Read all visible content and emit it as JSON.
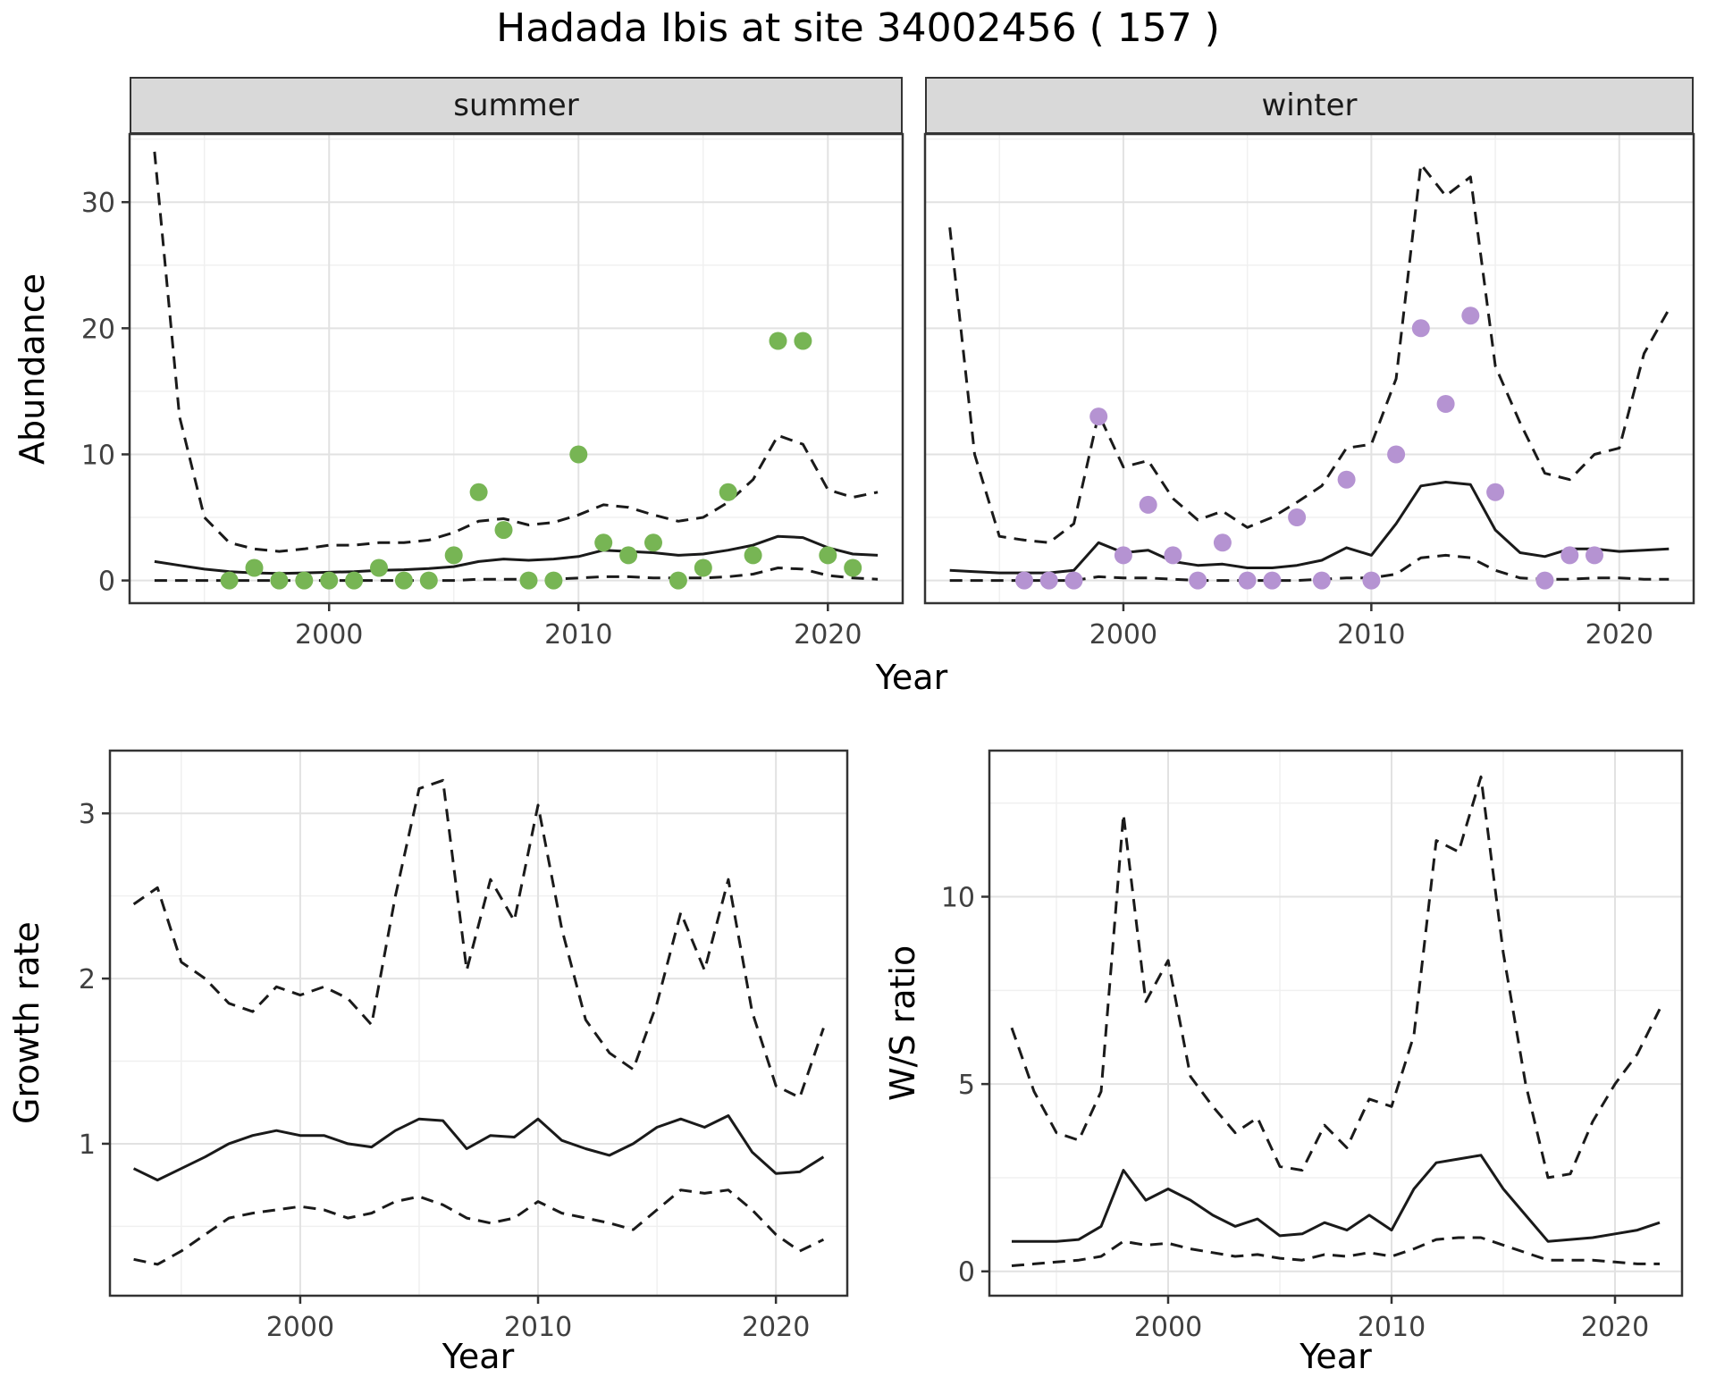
{
  "title": "Hadada Ibis at site 34002456 ( 157 )",
  "axes": {
    "abundance_ylabel": "Abundance",
    "top_xlabel": "Year",
    "growth_ylabel": "Growth rate",
    "growth_xlabel": "Year",
    "ws_ylabel": "W/S ratio",
    "ws_xlabel": "Year"
  },
  "facets": [
    {
      "label": "summer"
    },
    {
      "label": "winter"
    }
  ],
  "colors": {
    "summer_point": "#77b554",
    "winter_point": "#b593d2",
    "line": "#1a1a1a",
    "grid_major": "#e2e2e2",
    "grid_minor": "#f0f0f0",
    "strip_bg": "#d9d9d9",
    "panel_border": "#333333",
    "tick": "#333333"
  },
  "chart_data": [
    {
      "type": "line",
      "id": "summer_abundance",
      "facet": "summer",
      "xlabel": "Year",
      "ylabel": "Abundance",
      "xlim": [
        1992,
        2023
      ],
      "ylim": [
        -1.8,
        35.4
      ],
      "xticks": [
        2000,
        2010,
        2020
      ],
      "yticks": [
        0,
        10,
        20,
        30
      ],
      "xminor": [
        1995,
        2005,
        2015
      ],
      "yminor": [
        5,
        15,
        25,
        35
      ],
      "x": [
        1993,
        1994,
        1995,
        1996,
        1997,
        1998,
        1999,
        2000,
        2001,
        2002,
        2003,
        2004,
        2005,
        2006,
        2007,
        2008,
        2009,
        2010,
        2011,
        2012,
        2013,
        2014,
        2015,
        2016,
        2017,
        2018,
        2019,
        2020,
        2021,
        2022
      ],
      "series": [
        {
          "name": "upper_ci",
          "style": "dashed",
          "values": [
            34,
            13,
            5,
            3,
            2.5,
            2.3,
            2.5,
            2.8,
            2.8,
            3,
            3,
            3.2,
            3.8,
            4.7,
            4.9,
            4.4,
            4.6,
            5.2,
            6,
            5.8,
            5.2,
            4.7,
            5,
            6.2,
            8,
            11.5,
            10.8,
            7.2,
            6.6,
            7
          ]
        },
        {
          "name": "lower_ci",
          "style": "dashed",
          "values": [
            0,
            0,
            0,
            0,
            0,
            0,
            0,
            0,
            0,
            0,
            0,
            0,
            0,
            0.1,
            0.1,
            0.1,
            0.1,
            0.2,
            0.3,
            0.3,
            0.2,
            0.2,
            0.2,
            0.3,
            0.5,
            1.0,
            0.9,
            0.4,
            0.2,
            0.1
          ]
        },
        {
          "name": "mean",
          "style": "solid",
          "values": [
            1.5,
            1.2,
            0.9,
            0.7,
            0.6,
            0.55,
            0.6,
            0.65,
            0.7,
            0.8,
            0.85,
            0.95,
            1.1,
            1.5,
            1.7,
            1.6,
            1.7,
            1.9,
            2.4,
            2.3,
            2.2,
            2.0,
            2.1,
            2.4,
            2.8,
            3.5,
            3.4,
            2.6,
            2.1,
            2.0
          ]
        }
      ],
      "points": {
        "name": "observed_counts",
        "color_key": "summer_point",
        "data": [
          [
            1996,
            0
          ],
          [
            1997,
            1
          ],
          [
            1998,
            0
          ],
          [
            1999,
            0
          ],
          [
            2000,
            0
          ],
          [
            2001,
            0
          ],
          [
            2002,
            1
          ],
          [
            2003,
            0
          ],
          [
            2004,
            0
          ],
          [
            2005,
            2
          ],
          [
            2006,
            7
          ],
          [
            2007,
            4
          ],
          [
            2008,
            0
          ],
          [
            2009,
            0
          ],
          [
            2010,
            10
          ],
          [
            2011,
            3
          ],
          [
            2012,
            2
          ],
          [
            2013,
            3
          ],
          [
            2014,
            0
          ],
          [
            2015,
            1
          ],
          [
            2016,
            7
          ],
          [
            2017,
            2
          ],
          [
            2018,
            19
          ],
          [
            2019,
            19
          ],
          [
            2020,
            2
          ],
          [
            2021,
            1
          ]
        ]
      }
    },
    {
      "type": "line",
      "id": "winter_abundance",
      "facet": "winter",
      "xlabel": "Year",
      "ylabel": "Abundance",
      "xlim": [
        1992,
        2023
      ],
      "ylim": [
        -1.8,
        35.4
      ],
      "xticks": [
        2000,
        2010,
        2020
      ],
      "yticks": [
        0,
        10,
        20,
        30
      ],
      "xminor": [
        1995,
        2005,
        2015
      ],
      "yminor": [
        5,
        15,
        25,
        35
      ],
      "x": [
        1993,
        1994,
        1995,
        1996,
        1997,
        1998,
        1999,
        2000,
        2001,
        2002,
        2003,
        2004,
        2005,
        2006,
        2007,
        2008,
        2009,
        2010,
        2011,
        2012,
        2013,
        2014,
        2015,
        2016,
        2017,
        2018,
        2019,
        2020,
        2021,
        2022
      ],
      "series": [
        {
          "name": "upper_ci",
          "style": "dashed",
          "values": [
            28,
            10,
            3.5,
            3.2,
            3,
            4.5,
            13.2,
            9,
            9.5,
            6.5,
            4.8,
            5.5,
            4.2,
            5,
            6.2,
            7.5,
            10.5,
            10.8,
            16,
            33,
            30.5,
            32,
            17,
            12.5,
            8.5,
            8,
            10,
            10.5,
            18,
            21.5
          ]
        },
        {
          "name": "lower_ci",
          "style": "dashed",
          "values": [
            0,
            0,
            0,
            0,
            0,
            0,
            0.3,
            0.2,
            0.2,
            0.1,
            0,
            0,
            0,
            0,
            0,
            0.1,
            0.2,
            0.2,
            0.5,
            1.8,
            2.0,
            1.8,
            0.8,
            0.2,
            0.1,
            0.1,
            0.2,
            0.2,
            0.1,
            0.1
          ]
        },
        {
          "name": "mean",
          "style": "solid",
          "values": [
            0.8,
            0.7,
            0.6,
            0.6,
            0.6,
            0.8,
            3.0,
            2.2,
            2.4,
            1.5,
            1.2,
            1.3,
            1.0,
            1.0,
            1.2,
            1.6,
            2.6,
            2.0,
            4.5,
            7.5,
            7.8,
            7.6,
            4.0,
            2.2,
            1.9,
            2.5,
            2.5,
            2.3,
            2.4,
            2.5
          ]
        }
      ],
      "points": {
        "name": "observed_counts",
        "color_key": "winter_point",
        "data": [
          [
            1996,
            0
          ],
          [
            1997,
            0
          ],
          [
            1998,
            0
          ],
          [
            1999,
            13
          ],
          [
            2000,
            2
          ],
          [
            2001,
            6
          ],
          [
            2002,
            2
          ],
          [
            2003,
            0
          ],
          [
            2004,
            3
          ],
          [
            2005,
            0
          ],
          [
            2006,
            0
          ],
          [
            2007,
            5
          ],
          [
            2008,
            0
          ],
          [
            2009,
            8
          ],
          [
            2010,
            0
          ],
          [
            2011,
            10
          ],
          [
            2012,
            20
          ],
          [
            2013,
            14
          ],
          [
            2014,
            21
          ],
          [
            2015,
            7
          ],
          [
            2017,
            0
          ],
          [
            2018,
            2
          ],
          [
            2019,
            2
          ]
        ]
      }
    },
    {
      "type": "line",
      "id": "growth_rate",
      "xlabel": "Year",
      "ylabel": "Growth rate",
      "xlim": [
        1992,
        2023
      ],
      "ylim": [
        0.08,
        3.38
      ],
      "xticks": [
        2000,
        2010,
        2020
      ],
      "yticks": [
        1,
        2,
        3
      ],
      "xminor": [
        1995,
        2005,
        2015
      ],
      "yminor": [
        0.5,
        1.5,
        2.5
      ],
      "x": [
        1993,
        1994,
        1995,
        1996,
        1997,
        1998,
        1999,
        2000,
        2001,
        2002,
        2003,
        2004,
        2005,
        2006,
        2007,
        2008,
        2009,
        2010,
        2011,
        2012,
        2013,
        2014,
        2015,
        2016,
        2017,
        2018,
        2019,
        2020,
        2021,
        2022
      ],
      "series": [
        {
          "name": "upper_ci",
          "style": "dashed",
          "values": [
            2.45,
            2.55,
            2.1,
            2.0,
            1.85,
            1.8,
            1.95,
            1.9,
            1.95,
            1.88,
            1.72,
            2.5,
            3.15,
            3.2,
            2.05,
            2.6,
            2.35,
            3.05,
            2.3,
            1.75,
            1.55,
            1.45,
            1.85,
            2.4,
            2.05,
            2.6,
            1.8,
            1.35,
            1.28,
            1.7
          ]
        },
        {
          "name": "lower_ci",
          "style": "dashed",
          "values": [
            0.3,
            0.27,
            0.35,
            0.45,
            0.55,
            0.58,
            0.6,
            0.62,
            0.6,
            0.55,
            0.58,
            0.65,
            0.68,
            0.63,
            0.55,
            0.52,
            0.55,
            0.65,
            0.58,
            0.55,
            0.52,
            0.48,
            0.6,
            0.72,
            0.7,
            0.72,
            0.6,
            0.45,
            0.35,
            0.42
          ]
        },
        {
          "name": "mean",
          "style": "solid",
          "values": [
            0.85,
            0.78,
            0.85,
            0.92,
            1.0,
            1.05,
            1.08,
            1.05,
            1.05,
            1.0,
            0.98,
            1.08,
            1.15,
            1.14,
            0.97,
            1.05,
            1.04,
            1.15,
            1.02,
            0.97,
            0.93,
            1.0,
            1.1,
            1.15,
            1.1,
            1.17,
            0.95,
            0.82,
            0.83,
            0.92
          ]
        }
      ]
    },
    {
      "type": "line",
      "id": "ws_ratio",
      "xlabel": "Year",
      "ylabel": "W/S ratio",
      "xlim": [
        1992,
        2023
      ],
      "ylim": [
        -0.65,
        13.9
      ],
      "xticks": [
        2000,
        2010,
        2020
      ],
      "yticks": [
        0,
        5,
        10
      ],
      "xminor": [
        1995,
        2005,
        2015
      ],
      "yminor": [
        2.5,
        7.5,
        12.5
      ],
      "x": [
        1993,
        1994,
        1995,
        1996,
        1997,
        1998,
        1999,
        2000,
        2001,
        2002,
        2003,
        2004,
        2005,
        2006,
        2007,
        2008,
        2009,
        2010,
        2011,
        2012,
        2013,
        2014,
        2015,
        2016,
        2017,
        2018,
        2019,
        2020,
        2021,
        2022
      ],
      "series": [
        {
          "name": "upper_ci",
          "style": "dashed",
          "values": [
            6.5,
            4.8,
            3.7,
            3.5,
            4.8,
            12.2,
            7.2,
            8.3,
            5.2,
            4.4,
            3.7,
            4.1,
            2.8,
            2.7,
            3.9,
            3.3,
            4.6,
            4.4,
            6.3,
            11.5,
            11.2,
            13.2,
            8.5,
            5.0,
            2.5,
            2.6,
            4.0,
            5.0,
            5.8,
            7.0
          ]
        },
        {
          "name": "lower_ci",
          "style": "dashed",
          "values": [
            0.15,
            0.2,
            0.25,
            0.3,
            0.4,
            0.8,
            0.7,
            0.75,
            0.6,
            0.5,
            0.4,
            0.45,
            0.35,
            0.3,
            0.45,
            0.4,
            0.5,
            0.4,
            0.6,
            0.85,
            0.9,
            0.9,
            0.7,
            0.5,
            0.3,
            0.3,
            0.3,
            0.25,
            0.2,
            0.2
          ]
        },
        {
          "name": "mean",
          "style": "solid",
          "values": [
            0.8,
            0.8,
            0.8,
            0.85,
            1.2,
            2.7,
            1.9,
            2.2,
            1.9,
            1.5,
            1.2,
            1.4,
            0.95,
            1.0,
            1.3,
            1.1,
            1.5,
            1.1,
            2.2,
            2.9,
            3.0,
            3.1,
            2.2,
            1.5,
            0.8,
            0.85,
            0.9,
            1.0,
            1.1,
            1.3
          ]
        }
      ]
    }
  ]
}
